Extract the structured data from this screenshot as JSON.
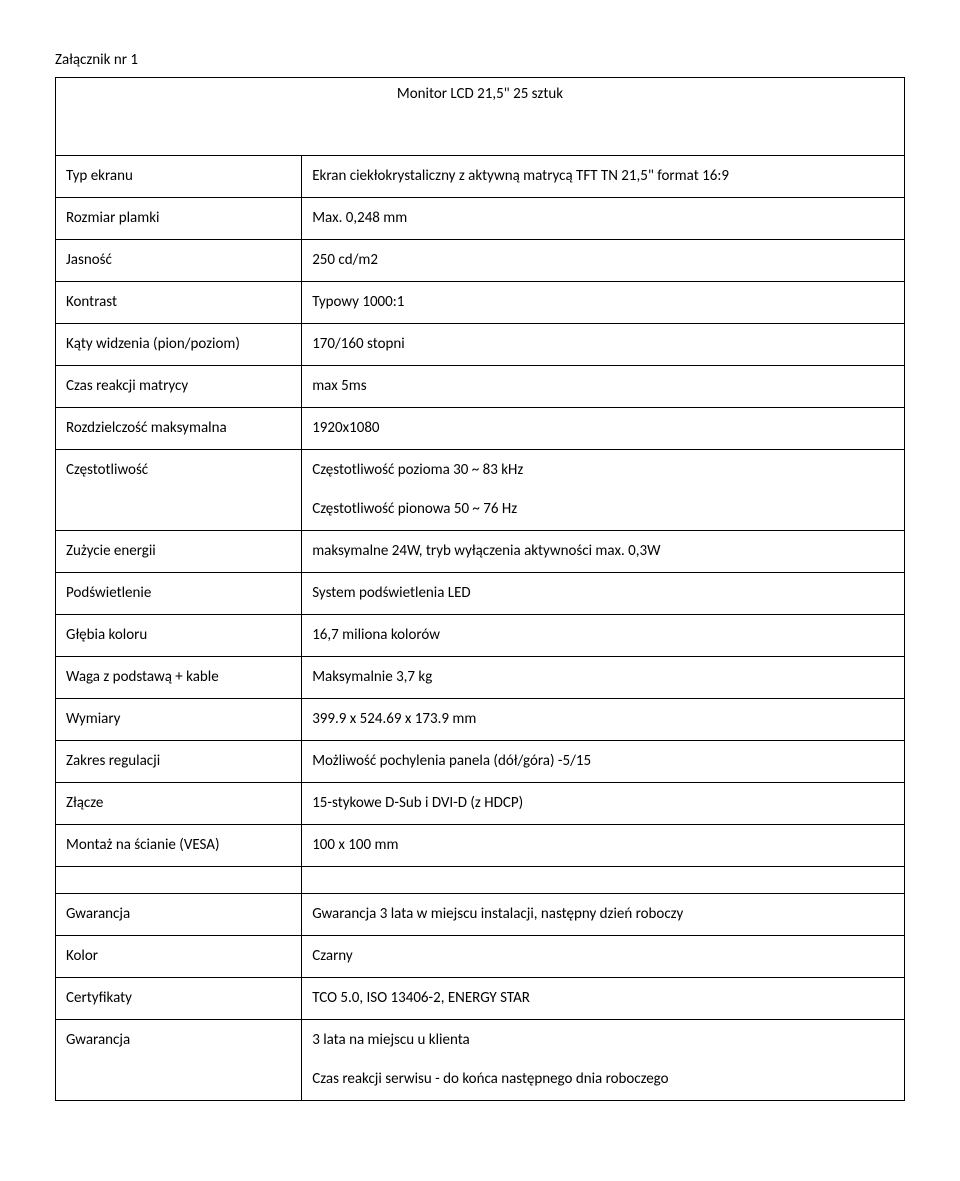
{
  "header": "Załącznik nr 1",
  "title": "Monitor LCD 21,5\" 25 sztuk",
  "rows1": [
    {
      "label": "Typ ekranu",
      "value": "Ekran ciekłokrystaliczny z aktywną matrycą TFT TN 21,5\" format 16:9"
    },
    {
      "label": "Rozmiar plamki",
      "value": "Max. 0,248 mm"
    },
    {
      "label": "Jasność",
      "value": "250 cd/m2"
    },
    {
      "label": "Kontrast",
      "value": "Typowy 1000:1"
    },
    {
      "label": "Kąty widzenia (pion/poziom)",
      "value": "170/160 stopni"
    },
    {
      "label": "Czas reakcji matrycy",
      "value": "max 5ms"
    },
    {
      "label": "Rozdzielczość maksymalna",
      "value": "1920x1080"
    }
  ],
  "freqRow": {
    "label": "Częstotliwość",
    "value1": "Częstotliwość pozioma  30 ~ 83 kHz",
    "value2": "Częstotliwość pionowa  50 ~ 76 Hz"
  },
  "rows2": [
    {
      "label": "Zużycie energii",
      "value": "maksymalne 24W, tryb wyłączenia aktywności max. 0,3W"
    },
    {
      "label": "Podświetlenie",
      "value": "System podświetlenia LED"
    },
    {
      "label": "Głębia koloru",
      "value": "16,7 miliona kolorów"
    },
    {
      "label": "Waga z podstawą + kable",
      "value": "Maksymalnie 3,7 kg"
    },
    {
      "label": "Wymiary",
      "value": "399.9 x 524.69 x 173.9 mm"
    },
    {
      "label": "Zakres regulacji",
      "value": "Możliwość pochylenia panela (dół/góra) -5/15"
    },
    {
      "label": "Złącze",
      "value": "15-stykowe D-Sub i DVI-D (z HDCP)"
    },
    {
      "label": "Montaż na ścianie (VESA)",
      "value": "100 x 100 mm"
    }
  ],
  "rows3": [
    {
      "label": "Gwarancja",
      "value": "Gwarancja 3 lata w miejscu instalacji, następny dzień roboczy"
    },
    {
      "label": "Kolor",
      "value": "Czarny"
    },
    {
      "label": "Certyfikaty",
      "value": "TCO 5.0, ISO 13406-2, ENERGY STAR"
    }
  ],
  "warrantyRow": {
    "label": "Gwarancja",
    "value1": "3 lata na miejscu u klienta",
    "value2": "Czas reakcji serwisu - do końca następnego dnia roboczego"
  }
}
